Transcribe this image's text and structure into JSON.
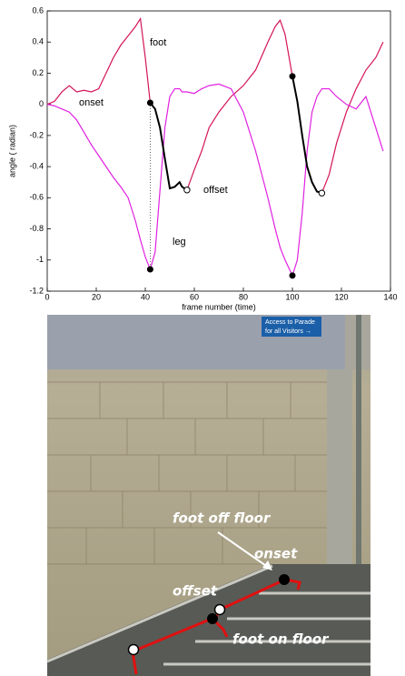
{
  "chart_data": {
    "type": "line",
    "ylabel": "angle ( radian)",
    "xlabel": "frame number (time)",
    "x": [
      0,
      3,
      6,
      9,
      12,
      15,
      18,
      21,
      24,
      27,
      30,
      33,
      36,
      38,
      40,
      42,
      44,
      46,
      48,
      50,
      52,
      54,
      55,
      57,
      60,
      63,
      66,
      70,
      75,
      80,
      85,
      90,
      93,
      95,
      97,
      100,
      102,
      104,
      106,
      108,
      110,
      112,
      115,
      118,
      122,
      126,
      130,
      134,
      137
    ],
    "series": [
      {
        "name": "foot",
        "color": "#d4145a",
        "values": [
          0,
          0.02,
          0.08,
          0.12,
          0.08,
          0.09,
          0.08,
          0.1,
          0.2,
          0.3,
          0.38,
          0.44,
          0.5,
          0.55,
          0.3,
          0.01,
          null,
          null,
          null,
          null,
          null,
          null,
          null,
          -0.55,
          -0.42,
          -0.3,
          -0.15,
          -0.05,
          0.05,
          0.12,
          0.22,
          0.4,
          0.5,
          0.54,
          0.45,
          0.18,
          null,
          null,
          null,
          null,
          null,
          -0.57,
          -0.45,
          -0.25,
          -0.05,
          0.1,
          0.22,
          0.3,
          0.4
        ]
      },
      {
        "name": "leg",
        "color": "#e020e0",
        "values": [
          0,
          -0.01,
          -0.03,
          -0.05,
          -0.1,
          -0.18,
          -0.26,
          -0.33,
          -0.4,
          -0.47,
          -0.53,
          -0.6,
          -0.75,
          -0.87,
          -0.98,
          -1.06,
          -0.95,
          -0.55,
          -0.15,
          0.05,
          0.1,
          0.1,
          0.08,
          0.08,
          0.07,
          0.1,
          0.12,
          0.13,
          0.1,
          -0.05,
          -0.3,
          -0.6,
          -0.8,
          -0.92,
          -1.0,
          -1.1,
          -1.0,
          -0.7,
          -0.3,
          -0.05,
          0.05,
          0.1,
          0.1,
          0.05,
          0,
          -0.03,
          0.05,
          -0.15,
          -0.3
        ]
      },
      {
        "color": "#000000",
        "values": [
          null,
          null,
          null,
          null,
          null,
          null,
          null,
          null,
          null,
          null,
          null,
          null,
          null,
          null,
          null,
          0.01,
          -0.03,
          -0.15,
          -0.35,
          -0.54,
          -0.53,
          -0.5,
          -0.53,
          -0.55,
          null,
          null,
          null,
          null,
          null,
          null,
          null,
          null,
          null,
          null,
          null,
          0.18,
          0.02,
          -0.2,
          -0.4,
          -0.5,
          -0.56,
          -0.57,
          null,
          null,
          null,
          null,
          null,
          null,
          null
        ]
      }
    ],
    "annotations": [
      "foot",
      "onset",
      "offset",
      "leg"
    ],
    "xlim": [
      0,
      140
    ],
    "xticks": [
      0,
      20,
      40,
      60,
      80,
      100,
      120,
      140
    ],
    "ylim": [
      -1.2,
      0.6
    ],
    "yticks": [
      -1.2,
      -1,
      -0.8,
      -0.6,
      -0.4,
      -0.2,
      0,
      0.2,
      0.4,
      0.6
    ]
  },
  "photo": {
    "sign": [
      "Access to Parade",
      "for all Visitors →"
    ],
    "labels": [
      "foot off floor",
      "onset",
      "offset",
      "foot on floor"
    ]
  }
}
